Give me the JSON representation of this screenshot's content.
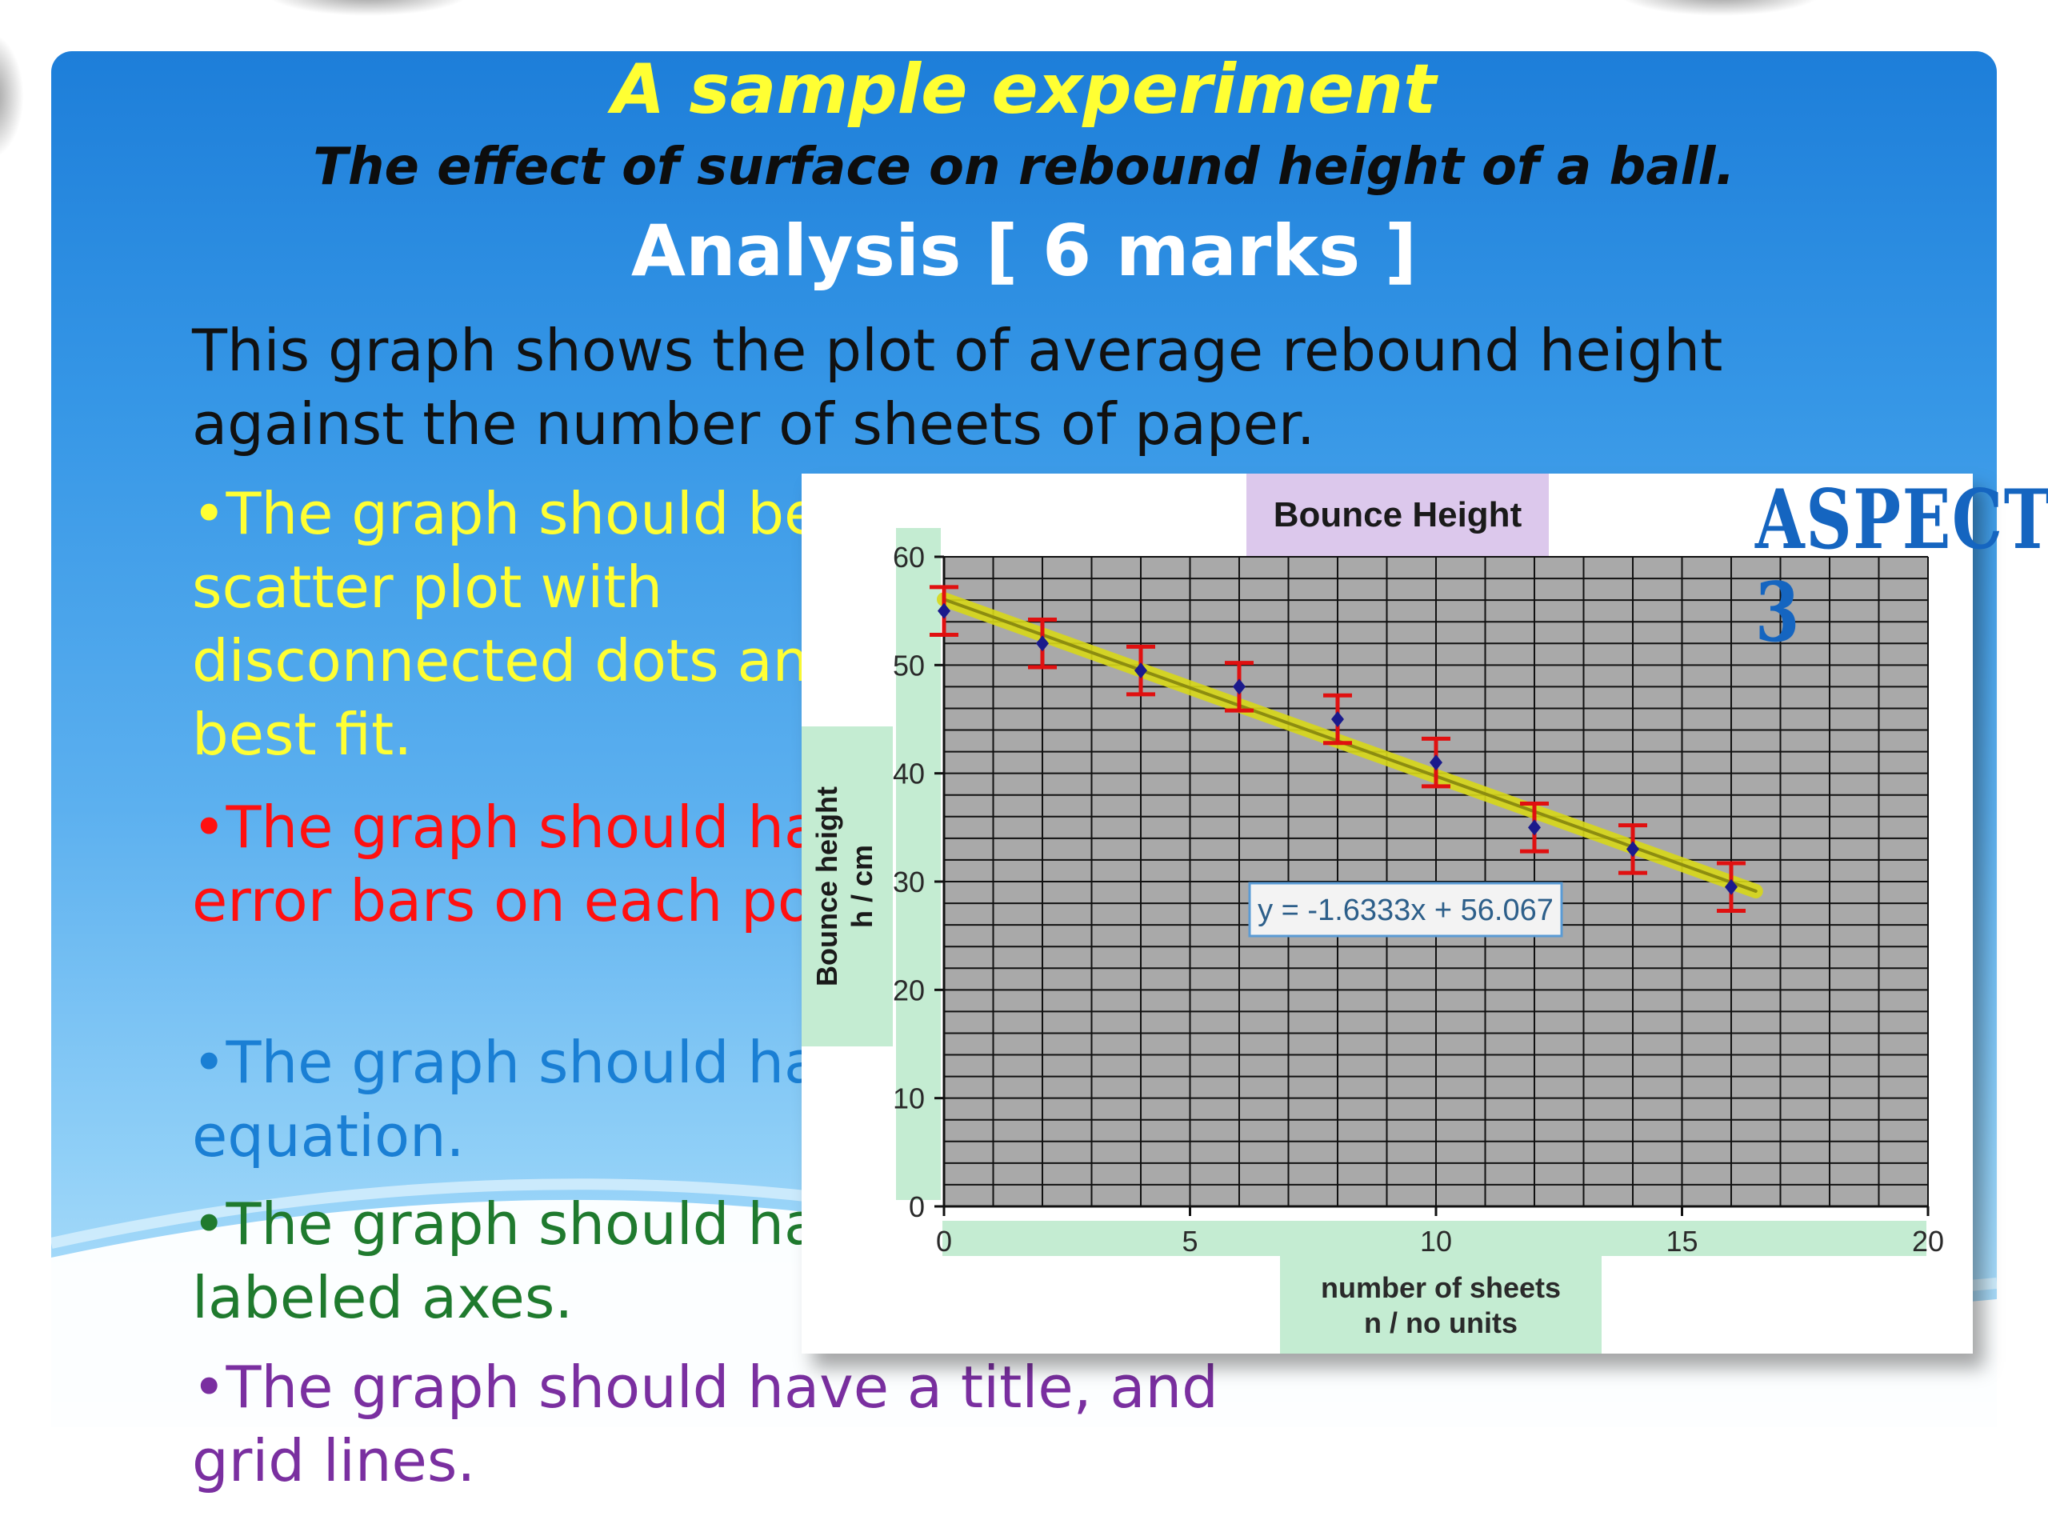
{
  "header": {
    "title": "A sample experiment",
    "subtitle": "The effect of surface on rebound height of a ball.",
    "section": "Analysis [ 6 marks ]"
  },
  "intro": "This graph shows the plot of average rebound height against the number of sheets of paper.",
  "bullets": [
    {
      "text": "•The graph should be a scatter plot with disconnected dots and a best fit.",
      "color": "#ffff33"
    },
    {
      "text": "•The graph should have error bars on each point.",
      "color": "#ff1010"
    },
    {
      "text": "•The graph should have an equation.",
      "color": "#1a7fd4"
    },
    {
      "text": "•The graph should have labeled axes.",
      "color": "#1f7a2e"
    },
    {
      "text": "•The graph should have a title, and grid lines.",
      "color": "#7a2fa0"
    }
  ],
  "aspect_label": "ASPECT 3",
  "chart_data": {
    "type": "scatter",
    "title": "Bounce Height",
    "xlabel_line1": "number of sheets",
    "xlabel_line2": "n / no units",
    "ylabel_line1": "Bounce height",
    "ylabel_line2": "h / cm",
    "xlim": [
      0,
      20
    ],
    "ylim": [
      0,
      60
    ],
    "x_ticks": [
      0,
      5,
      10,
      15,
      20
    ],
    "y_ticks": [
      0,
      10,
      20,
      30,
      40,
      50,
      60
    ],
    "grid": true,
    "x": [
      0,
      2,
      4,
      6,
      8,
      10,
      12,
      14,
      16
    ],
    "y": [
      55,
      52,
      49.5,
      48,
      45,
      41,
      35,
      33,
      29.5
    ],
    "error": [
      2.2,
      2.2,
      2.2,
      2.2,
      2.2,
      2.2,
      2.2,
      2.2,
      2.2
    ],
    "trendline": {
      "slope": -1.6333,
      "intercept": 56.067,
      "x_range": [
        0,
        16.5
      ]
    },
    "equation_label": "y = -1.6333x + 56.067",
    "colors": {
      "plot_bg": "#a9a9a9",
      "grid": "#111111",
      "point": "#1a1a8c",
      "error_bar": "#e01010",
      "trendline": "#d8d818",
      "label_bg": "#c4ecd2",
      "title_bg": "#dcc8ec"
    }
  }
}
